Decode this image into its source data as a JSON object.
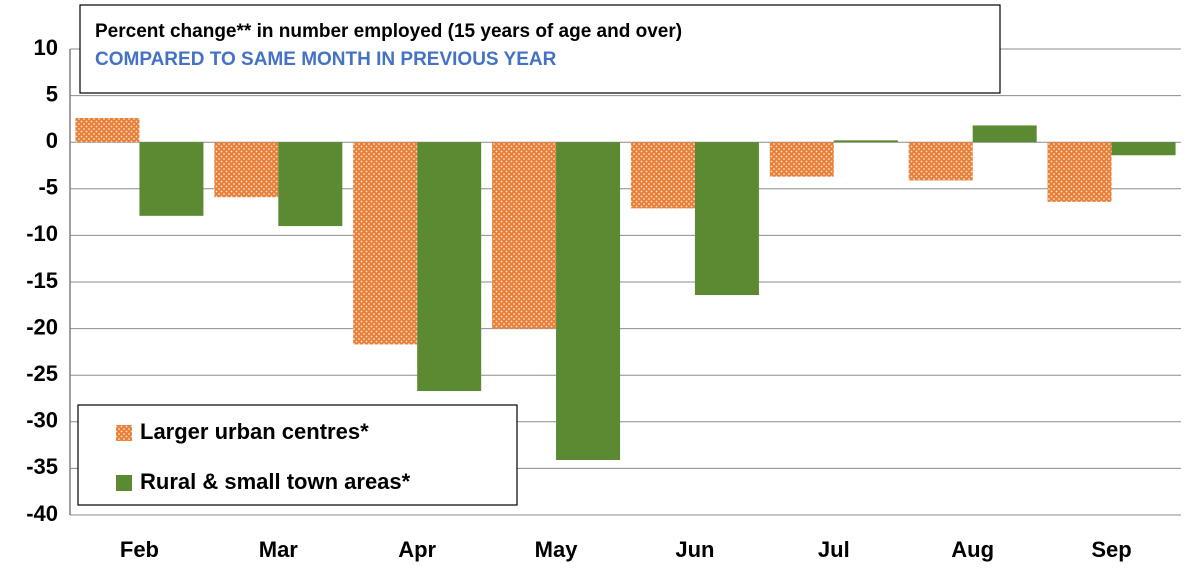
{
  "chart_data": {
    "type": "bar",
    "title": "Percent change** in number employed (15 years of age and over)",
    "subtitle": "COMPARED TO SAME MONTH IN PREVIOUS YEAR",
    "categories": [
      "Feb",
      "Mar",
      "Apr",
      "May",
      "Jun",
      "Jul",
      "Aug",
      "Sep"
    ],
    "series": [
      {
        "name": "Larger urban centres*",
        "color": "#e8803a",
        "pattern": "dots",
        "values": [
          2.6,
          -5.9,
          -21.7,
          -20.0,
          -7.1,
          -3.7,
          -4.1,
          -6.4
        ]
      },
      {
        "name": "Rural & small town areas*",
        "color": "#5b8a32",
        "values": [
          -7.9,
          -9.0,
          -26.7,
          -34.1,
          -16.4,
          0.2,
          1.8,
          -1.4
        ]
      }
    ],
    "ylim": [
      -40,
      10
    ],
    "yticks": [
      10,
      5,
      0,
      -5,
      -10,
      -15,
      -20,
      -25,
      -30,
      -35,
      -40
    ],
    "grid": true,
    "legend": "lower left"
  }
}
